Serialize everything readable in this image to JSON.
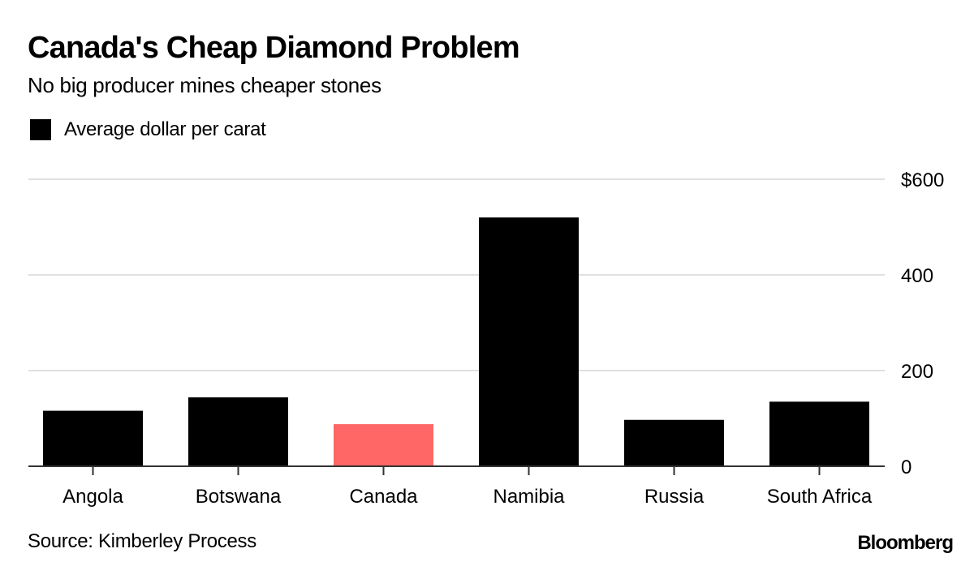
{
  "header": {
    "title": "Canada's Cheap Diamond Problem",
    "subtitle": "No big producer mines cheaper stones"
  },
  "legend": {
    "label": "Average dollar per carat",
    "color": "#000000"
  },
  "footer": {
    "source": "Source: Kimberley Process",
    "brand": "Bloomberg"
  },
  "colors": {
    "default_bar": "#000000",
    "highlight_bar": "#ff6666",
    "gridline": "#e0e0e0",
    "axis": "#333333"
  },
  "chart_data": {
    "type": "bar",
    "title": "Canada's Cheap Diamond Problem",
    "subtitle": "No big producer mines cheaper stones",
    "xlabel": "",
    "ylabel": "",
    "categories": [
      "Angola",
      "Botswana",
      "Canada",
      "Namibia",
      "Russia",
      "South Africa"
    ],
    "series": [
      {
        "name": "Average dollar per carat",
        "values": [
          116,
          144,
          88,
          520,
          97,
          135
        ]
      }
    ],
    "highlight": "Canada",
    "ylim": [
      0,
      600
    ],
    "yticks": [
      0,
      200,
      400,
      600
    ],
    "ytick_labels": [
      "0",
      "200",
      "400",
      "$600"
    ],
    "y_axis_position": "right",
    "grid": true,
    "legend_position": "top-left",
    "source": "Source: Kimberley Process"
  }
}
